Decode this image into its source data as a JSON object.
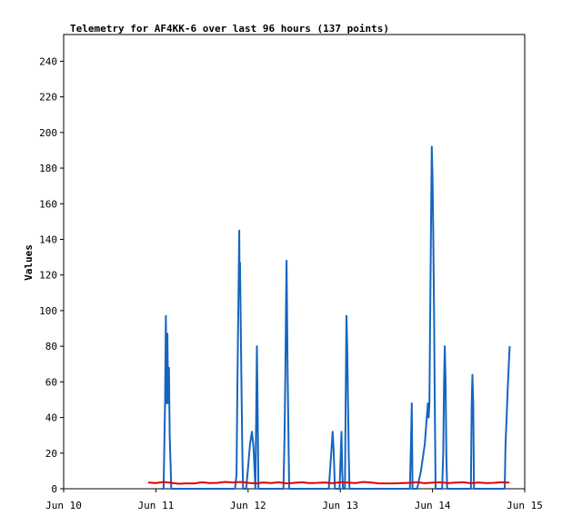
{
  "chart_data": {
    "type": "line",
    "title": "Telemetry for AF4KK-6 over last 96 hours (137 points)",
    "xlabel": "",
    "ylabel": "Values",
    "x_unit": "hours",
    "xlim": [
      0,
      120
    ],
    "ylim": [
      0,
      255
    ],
    "x_ticks": [
      {
        "label": "Jun 10",
        "x": 0
      },
      {
        "label": "Jun 11",
        "x": 24
      },
      {
        "label": "Jun 12",
        "x": 48
      },
      {
        "label": "Jun 13",
        "x": 72
      },
      {
        "label": "Jun 14",
        "x": 96
      },
      {
        "label": "Jun 15",
        "x": 120
      }
    ],
    "y_ticks": [
      0,
      20,
      40,
      60,
      80,
      100,
      120,
      140,
      160,
      180,
      200,
      220,
      240
    ],
    "grid": false,
    "legend": "none",
    "series": [
      {
        "color": "#1565c0",
        "points": [
          [
            25.5,
            0
          ],
          [
            26.0,
            0
          ],
          [
            26.4,
            48
          ],
          [
            26.6,
            97
          ],
          [
            26.8,
            48
          ],
          [
            27.0,
            87
          ],
          [
            27.2,
            48
          ],
          [
            27.4,
            68
          ],
          [
            27.6,
            30
          ],
          [
            27.8,
            15
          ],
          [
            28.0,
            0
          ],
          [
            44.6,
            0
          ],
          [
            45.0,
            8
          ],
          [
            45.2,
            55
          ],
          [
            45.4,
            90
          ],
          [
            45.6,
            127
          ],
          [
            45.7,
            145
          ],
          [
            45.8,
            110
          ],
          [
            45.9,
            127
          ],
          [
            46.1,
            90
          ],
          [
            46.3,
            55
          ],
          [
            46.5,
            20
          ],
          [
            46.7,
            0
          ],
          [
            47.5,
            0
          ],
          [
            48.0,
            12
          ],
          [
            48.5,
            25
          ],
          [
            49.0,
            32
          ],
          [
            49.4,
            24
          ],
          [
            49.7,
            10
          ],
          [
            49.9,
            0
          ],
          [
            50.1,
            40
          ],
          [
            50.3,
            80
          ],
          [
            50.5,
            40
          ],
          [
            50.7,
            0
          ],
          [
            57.2,
            0
          ],
          [
            57.5,
            30
          ],
          [
            57.7,
            65
          ],
          [
            57.9,
            107
          ],
          [
            58.0,
            128
          ],
          [
            58.1,
            107
          ],
          [
            58.3,
            65
          ],
          [
            58.5,
            30
          ],
          [
            58.7,
            0
          ],
          [
            69.0,
            0
          ],
          [
            69.5,
            15
          ],
          [
            70.0,
            32
          ],
          [
            70.3,
            20
          ],
          [
            70.6,
            0
          ],
          [
            71.8,
            0
          ],
          [
            72.1,
            18
          ],
          [
            72.3,
            32
          ],
          [
            72.5,
            10
          ],
          [
            72.7,
            0
          ],
          [
            73.2,
            0
          ],
          [
            73.4,
            48
          ],
          [
            73.6,
            97
          ],
          [
            73.8,
            80
          ],
          [
            74.0,
            48
          ],
          [
            74.2,
            20
          ],
          [
            74.4,
            0
          ],
          [
            90.1,
            0
          ],
          [
            90.4,
            25
          ],
          [
            90.6,
            48
          ],
          [
            90.8,
            0
          ],
          [
            92.0,
            0
          ],
          [
            93.0,
            10
          ],
          [
            94.0,
            25
          ],
          [
            94.8,
            48
          ],
          [
            95.0,
            40
          ],
          [
            95.2,
            48
          ],
          [
            95.4,
            100
          ],
          [
            95.6,
            145
          ],
          [
            95.8,
            192
          ],
          [
            96.0,
            176
          ],
          [
            96.2,
            145
          ],
          [
            96.4,
            100
          ],
          [
            96.6,
            48
          ],
          [
            96.8,
            0
          ],
          [
            98.5,
            0
          ],
          [
            98.8,
            20
          ],
          [
            99.0,
            60
          ],
          [
            99.2,
            80
          ],
          [
            99.4,
            60
          ],
          [
            99.6,
            20
          ],
          [
            99.8,
            0
          ],
          [
            106.0,
            0
          ],
          [
            106.2,
            48
          ],
          [
            106.4,
            64
          ],
          [
            106.6,
            48
          ],
          [
            106.8,
            0
          ],
          [
            114.8,
            0
          ],
          [
            115.0,
            25
          ],
          [
            115.3,
            40
          ],
          [
            115.6,
            57
          ],
          [
            115.9,
            72
          ],
          [
            116.1,
            80
          ]
        ]
      },
      {
        "color": "#dd0000",
        "points": [
          [
            22.0,
            3.5
          ],
          [
            24.0,
            3.2
          ],
          [
            26.0,
            3.8
          ],
          [
            28.0,
            3.3
          ],
          [
            30.0,
            2.8
          ],
          [
            32.0,
            3.0
          ],
          [
            34.0,
            3.0
          ],
          [
            36.0,
            3.6
          ],
          [
            38.0,
            3.2
          ],
          [
            40.0,
            3.3
          ],
          [
            42.0,
            3.8
          ],
          [
            44.0,
            3.5
          ],
          [
            46.0,
            3.8
          ],
          [
            48.0,
            3.3
          ],
          [
            50.0,
            3.0
          ],
          [
            52.0,
            3.5
          ],
          [
            54.0,
            3.2
          ],
          [
            56.0,
            3.6
          ],
          [
            58.0,
            3.0
          ],
          [
            60.0,
            3.3
          ],
          [
            62.0,
            3.6
          ],
          [
            64.0,
            3.2
          ],
          [
            66.0,
            3.3
          ],
          [
            68.0,
            3.5
          ],
          [
            70.0,
            3.1
          ],
          [
            72.0,
            3.6
          ],
          [
            74.0,
            3.4
          ],
          [
            76.0,
            3.2
          ],
          [
            78.0,
            3.8
          ],
          [
            80.0,
            3.5
          ],
          [
            82.0,
            3.0
          ],
          [
            84.0,
            3.0
          ],
          [
            86.0,
            3.0
          ],
          [
            88.0,
            3.2
          ],
          [
            90.0,
            3.3
          ],
          [
            92.0,
            3.6
          ],
          [
            94.0,
            3.1
          ],
          [
            96.0,
            3.4
          ],
          [
            98.0,
            3.6
          ],
          [
            100.0,
            3.2
          ],
          [
            102.0,
            3.4
          ],
          [
            104.0,
            3.6
          ],
          [
            106.0,
            3.1
          ],
          [
            108.0,
            3.5
          ],
          [
            110.0,
            3.2
          ],
          [
            112.0,
            3.3
          ],
          [
            114.0,
            3.6
          ],
          [
            116.0,
            3.4
          ]
        ]
      }
    ]
  }
}
